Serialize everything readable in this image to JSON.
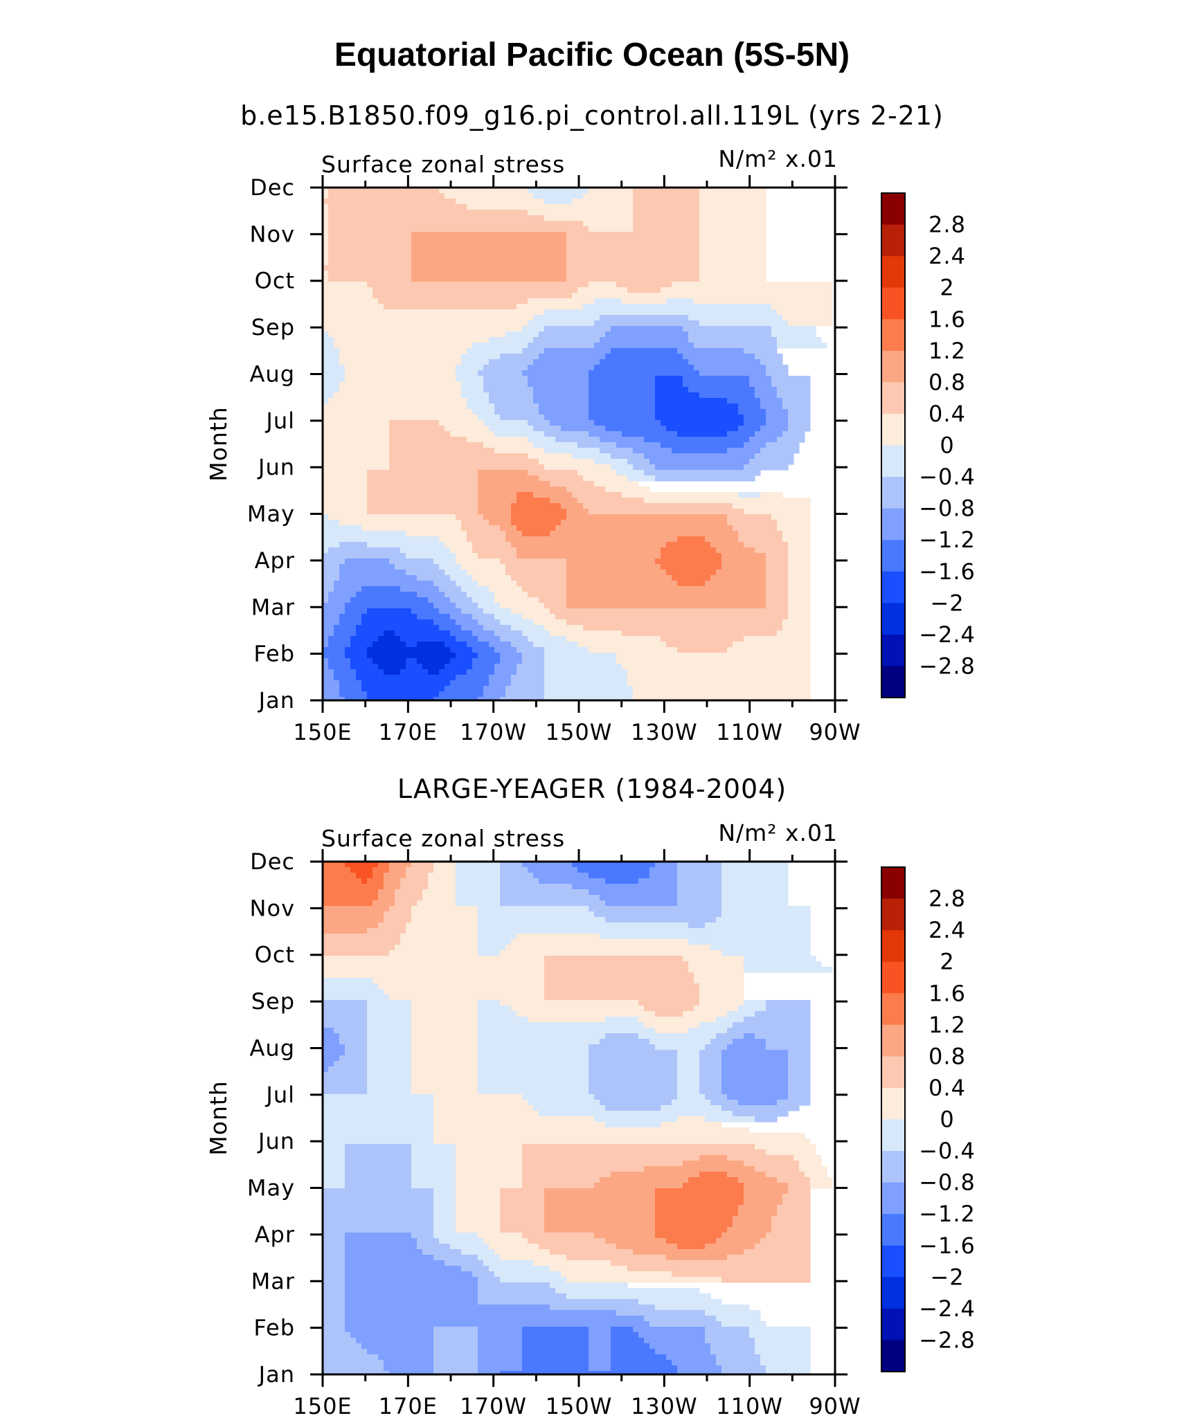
{
  "figure": {
    "title": "Equatorial Pacific Ocean (5S-5N)"
  },
  "chart_data": [
    {
      "type": "heatmap",
      "title": "b.e15.B1850.f09_g16.pi_control.all.119L (yrs 2-21)",
      "left_label": "Surface zonal stress",
      "units": "N/m² x.01",
      "ylabel": "Month",
      "xlabel": "",
      "x_ticks": [
        "150E",
        "170E",
        "170W",
        "150W",
        "130W",
        "110W",
        "90W"
      ],
      "y_ticks": [
        "Jan",
        "Feb",
        "Mar",
        "Apr",
        "May",
        "Jun",
        "Jul",
        "Aug",
        "Sep",
        "Oct",
        "Nov",
        "Dec"
      ],
      "x_range": [
        "150E",
        "90W"
      ],
      "y_range": [
        "Jan",
        "Dec"
      ],
      "levels": [
        -2.8,
        -2.4,
        -2,
        -1.6,
        -1.2,
        -0.8,
        -0.4,
        0,
        0.4,
        0.8,
        1.2,
        1.6,
        2,
        2.4,
        2.8
      ],
      "grid": [
        [
          -0.8,
          -1.2,
          -1.6,
          -1.6,
          -1.6,
          -1.6,
          -1.2,
          -1.2,
          -0.8,
          -0.4,
          -0.4,
          -0.4,
          -0.4,
          -0.4,
          0.0,
          0.0,
          0.0,
          0.0,
          0.0,
          0.0,
          0.0,
          0.0,
          0.0,
          -0.4
        ],
        [
          -1.2,
          -1.6,
          -2.0,
          -2.4,
          -2.0,
          -2.4,
          -2.0,
          -1.6,
          -1.2,
          -0.8,
          -0.4,
          -0.4,
          0.0,
          0.0,
          0.2,
          0.2,
          0.4,
          0.4,
          0.4,
          0.2,
          0.2,
          0.2,
          0.0,
          -0.4
        ],
        [
          -0.8,
          -1.2,
          -1.6,
          -1.6,
          -1.6,
          -1.2,
          -0.8,
          -0.4,
          0.0,
          0.2,
          0.4,
          0.8,
          0.8,
          0.8,
          0.8,
          0.8,
          0.8,
          0.8,
          0.8,
          0.8,
          0.8,
          0.4,
          0.0,
          -0.4
        ],
        [
          -0.4,
          -0.8,
          -0.8,
          -0.8,
          -0.4,
          -0.4,
          0.0,
          0.4,
          0.4,
          0.8,
          0.8,
          0.8,
          0.8,
          1.0,
          1.0,
          1.2,
          1.6,
          1.6,
          1.2,
          1.0,
          0.8,
          0.4,
          0.0,
          -0.4
        ],
        [
          0.0,
          0.2,
          0.4,
          0.4,
          0.4,
          0.4,
          0.4,
          0.8,
          1.0,
          1.6,
          1.6,
          1.2,
          0.8,
          0.8,
          0.8,
          0.8,
          0.8,
          0.8,
          0.8,
          0.4,
          0.4,
          0.2,
          0.0,
          -0.4
        ],
        [
          0.4,
          0.4,
          0.4,
          0.4,
          0.4,
          0.8,
          0.8,
          0.8,
          0.8,
          0.8,
          0.4,
          0.4,
          0.2,
          0.0,
          -0.4,
          -0.8,
          -0.8,
          -0.8,
          -0.8,
          -0.8,
          -0.4,
          -0.4,
          0.0,
          -0.4
        ],
        [
          0.2,
          0.2,
          0.2,
          0.4,
          0.4,
          0.4,
          0.2,
          0.0,
          -0.4,
          -0.4,
          -0.8,
          -1.2,
          -1.2,
          -1.6,
          -1.6,
          -1.6,
          -2.0,
          -2.0,
          -2.0,
          -1.6,
          -1.2,
          -0.8,
          -0.4,
          -0.4
        ],
        [
          -0.4,
          0.0,
          0.0,
          0.2,
          0.2,
          0.0,
          0.0,
          -0.4,
          -0.8,
          -0.8,
          -1.2,
          -1.2,
          -1.2,
          -1.6,
          -1.6,
          -1.6,
          -1.6,
          -1.2,
          -1.2,
          -1.2,
          -0.8,
          -0.4,
          -0.4,
          -0.4
        ],
        [
          0.0,
          0.2,
          0.2,
          0.2,
          0.2,
          0.2,
          0.2,
          0.2,
          0.2,
          0.0,
          -0.4,
          -0.4,
          -0.4,
          -0.8,
          -0.8,
          -0.8,
          -0.8,
          -0.4,
          -0.4,
          -0.4,
          -0.4,
          0.0,
          0.0,
          0.4
        ],
        [
          0.4,
          0.4,
          0.4,
          0.8,
          0.8,
          0.8,
          0.8,
          0.8,
          0.8,
          0.8,
          0.8,
          0.8,
          0.4,
          0.4,
          0.8,
          0.8,
          0.4,
          0.4,
          0.4,
          0.4,
          0.4,
          0.4,
          0.4,
          0.4
        ],
        [
          0.4,
          0.4,
          0.4,
          0.4,
          0.8,
          0.8,
          0.8,
          0.8,
          0.8,
          0.8,
          0.8,
          0.8,
          0.4,
          0.4,
          0.4,
          0.4,
          0.4,
          0.4,
          0.2,
          0.2,
          0.4,
          0.4,
          0.4,
          0.4
        ],
        [
          0.4,
          0.4,
          0.4,
          0.4,
          0.4,
          0.4,
          0.2,
          0.0,
          0.0,
          0.0,
          -0.4,
          -0.4,
          0.0,
          0.0,
          0.4,
          0.4,
          0.4,
          0.4,
          0.4,
          0.4,
          0.4,
          0.4,
          0.4,
          0.4
        ]
      ]
    },
    {
      "type": "heatmap",
      "title": "LARGE-YEAGER (1984-2004)",
      "left_label": "Surface zonal stress",
      "units": "N/m² x.01",
      "ylabel": "Month",
      "xlabel": "",
      "x_ticks": [
        "150E",
        "170E",
        "170W",
        "150W",
        "130W",
        "110W",
        "90W"
      ],
      "y_ticks": [
        "Jan",
        "Feb",
        "Mar",
        "Apr",
        "May",
        "Jun",
        "Jul",
        "Aug",
        "Sep",
        "Oct",
        "Nov",
        "Dec"
      ],
      "x_range": [
        "150E",
        "90W"
      ],
      "y_range": [
        "Jan",
        "Dec"
      ],
      "levels": [
        -2.8,
        -2.4,
        -2,
        -1.6,
        -1.2,
        -0.8,
        -0.4,
        0,
        0.4,
        0.8,
        1.2,
        1.6,
        2,
        2.4,
        2.8
      ],
      "grid": [
        [
          -0.4,
          -0.4,
          -0.4,
          -0.8,
          -0.8,
          -0.8,
          -0.4,
          -0.8,
          -1.2,
          -1.2,
          -1.6,
          -1.6,
          -1.2,
          -1.2,
          -1.6,
          -1.6,
          -1.2,
          -1.2,
          -0.8,
          -0.8,
          -0.4,
          -0.4,
          0.0,
          0.0
        ],
        [
          -0.4,
          -0.8,
          -1.2,
          -1.2,
          -1.2,
          -0.8,
          -0.8,
          -0.8,
          -1.2,
          -1.2,
          -1.2,
          -1.2,
          -1.2,
          -1.2,
          -1.2,
          -0.8,
          -0.8,
          -0.8,
          -0.4,
          -0.4,
          0.0,
          0.0,
          0.0,
          0.0
        ],
        [
          -0.4,
          -0.8,
          -1.2,
          -1.2,
          -1.2,
          -1.2,
          -1.2,
          -0.8,
          -0.4,
          -0.4,
          -0.4,
          0.0,
          0.0,
          0.0,
          0.2,
          0.2,
          0.2,
          0.2,
          0.4,
          0.4,
          0.4,
          0.4,
          0.4,
          0.0
        ],
        [
          -0.4,
          -0.8,
          -0.8,
          -0.8,
          -0.8,
          -0.4,
          0.0,
          0.0,
          0.4,
          0.4,
          0.8,
          0.8,
          0.8,
          1.0,
          1.2,
          1.2,
          1.6,
          1.6,
          1.2,
          1.0,
          0.8,
          0.4,
          0.4,
          0.0
        ],
        [
          -0.4,
          -0.4,
          -0.8,
          -0.8,
          -0.4,
          -0.4,
          0.0,
          0.0,
          0.4,
          0.4,
          0.8,
          0.8,
          0.8,
          1.0,
          1.0,
          1.2,
          1.2,
          1.6,
          1.6,
          1.2,
          1.0,
          0.8,
          0.4,
          0.0
        ],
        [
          -0.4,
          -0.4,
          -0.4,
          -0.4,
          -0.4,
          0.0,
          0.0,
          0.0,
          0.2,
          0.4,
          0.4,
          0.4,
          0.4,
          0.4,
          0.4,
          0.4,
          0.4,
          0.4,
          0.4,
          0.4,
          0.2,
          0.2,
          0.0,
          -0.4
        ],
        [
          -0.4,
          -0.4,
          -0.4,
          -0.4,
          0.0,
          0.0,
          0.0,
          0.0,
          0.0,
          0.0,
          -0.4,
          -0.4,
          -0.4,
          -0.8,
          -0.8,
          -0.8,
          -0.4,
          -0.4,
          -0.8,
          -1.2,
          -1.2,
          -0.8,
          -0.4,
          -0.4
        ],
        [
          -1.2,
          -0.8,
          -0.4,
          -0.4,
          0.0,
          0.0,
          0.0,
          0.0,
          -0.4,
          -0.4,
          -0.4,
          -0.4,
          -0.4,
          -0.8,
          -0.8,
          -0.4,
          -0.4,
          -0.4,
          -0.8,
          -1.2,
          -0.8,
          -0.8,
          -0.4,
          -0.4
        ],
        [
          -0.4,
          -0.4,
          -0.4,
          0.0,
          0.0,
          0.0,
          0.0,
          0.0,
          0.0,
          0.2,
          0.4,
          0.4,
          0.4,
          0.4,
          0.4,
          0.8,
          0.8,
          0.4,
          0.4,
          0.0,
          -0.4,
          -0.4,
          -0.4,
          -0.4
        ],
        [
          0.4,
          0.4,
          0.4,
          0.4,
          0.2,
          0.2,
          0.0,
          0.0,
          0.0,
          0.4,
          0.4,
          0.4,
          0.4,
          0.4,
          0.4,
          0.4,
          0.4,
          0.2,
          0.0,
          0.0,
          -0.4,
          -0.4,
          0.0,
          0.2
        ],
        [
          1.2,
          1.2,
          1.2,
          0.8,
          0.4,
          0.2,
          0.0,
          0.0,
          -0.4,
          -0.4,
          -0.4,
          -0.4,
          -0.4,
          -0.8,
          -0.8,
          -0.8,
          -0.8,
          -0.8,
          -0.4,
          -0.4,
          -0.4,
          0.0,
          0.0,
          0.0
        ],
        [
          1.2,
          1.6,
          2.0,
          1.2,
          0.8,
          0.4,
          0.0,
          -0.4,
          -0.4,
          -0.8,
          -1.2,
          -1.2,
          -1.6,
          -1.6,
          -1.6,
          -1.2,
          -0.8,
          -0.8,
          -0.4,
          -0.4,
          0.0,
          0.0,
          0.0,
          0.0
        ]
      ]
    }
  ],
  "colorbar": {
    "colors": [
      "#000080",
      "#0011b5",
      "#0030e0",
      "#1a4fff",
      "#4a79ff",
      "#7fa0ff",
      "#adc4fb",
      "#d7e8fa",
      "#fdebdb",
      "#fcc8b1",
      "#fca784",
      "#fc7c4e",
      "#fa5323",
      "#e33808",
      "#b92008",
      "#8a0000"
    ],
    "labels": [
      "2.8",
      "2.4",
      "2",
      "1.6",
      "1.2",
      "0.8",
      "0.4",
      "0",
      "−0.4",
      "−0.8",
      "−1.2",
      "−1.6",
      "−2",
      "−2.4",
      "−2.8"
    ]
  }
}
